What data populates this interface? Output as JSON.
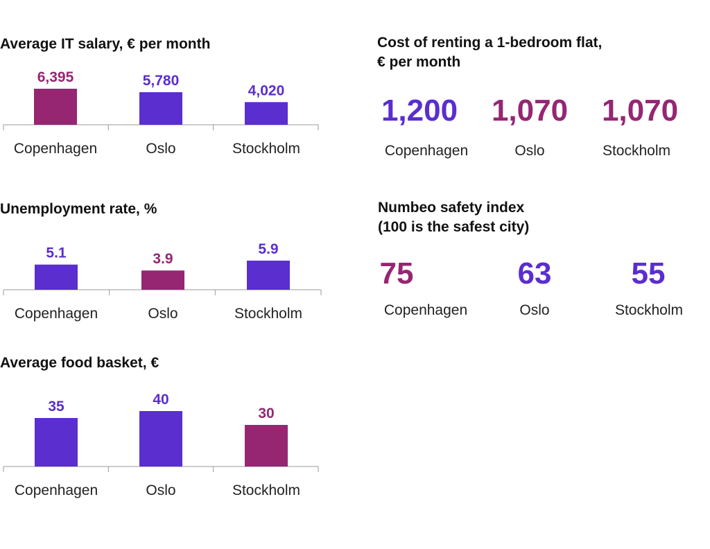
{
  "colors": {
    "primary": "#5a2ecf",
    "accent": "#962672",
    "axis": "#999999"
  },
  "chart_data": [
    {
      "type": "bar",
      "title": "Average IT salary, € per month",
      "categories": [
        "Copenhagen",
        "Oslo",
        "Stockholm"
      ],
      "values": [
        6395,
        5780,
        4020
      ],
      "labels": [
        "6,395",
        "5,780",
        "4,020"
      ],
      "bar_colors": [
        "accent",
        "primary",
        "primary"
      ],
      "ylim": [
        0,
        6395
      ]
    },
    {
      "type": "bar",
      "title": "Unemployment rate, %",
      "categories": [
        "Copenhagen",
        "Oslo",
        "Stockholm"
      ],
      "values": [
        5.1,
        3.9,
        5.9
      ],
      "labels": [
        "5.1",
        "3.9",
        "5.9"
      ],
      "bar_colors": [
        "primary",
        "accent",
        "primary"
      ],
      "ylim": [
        0,
        5.9
      ]
    },
    {
      "type": "bar",
      "title": "Average food basket, €",
      "categories": [
        "Copenhagen",
        "Oslo",
        "Stockholm"
      ],
      "values": [
        35,
        40,
        30
      ],
      "labels": [
        "35",
        "40",
        "30"
      ],
      "bar_colors": [
        "primary",
        "primary",
        "accent"
      ],
      "ylim": [
        0,
        40
      ]
    },
    {
      "type": "table",
      "title": "Cost of renting a 1-bedroom flat,\n€ per month",
      "categories": [
        "Copenhagen",
        "Oslo",
        "Stockholm"
      ],
      "values": [
        1200,
        1070,
        1070
      ],
      "labels": [
        "1,200",
        "1,070",
        "1,070"
      ],
      "value_colors": [
        "primary",
        "accent",
        "accent"
      ]
    },
    {
      "type": "table",
      "title": "Numbeo safety index\n(100 is the safest city)",
      "categories": [
        "Copenhagen",
        "Oslo",
        "Stockholm"
      ],
      "values": [
        75,
        63,
        55
      ],
      "labels": [
        "75",
        "63",
        "55"
      ],
      "value_colors": [
        "accent",
        "primary",
        "primary"
      ]
    }
  ]
}
